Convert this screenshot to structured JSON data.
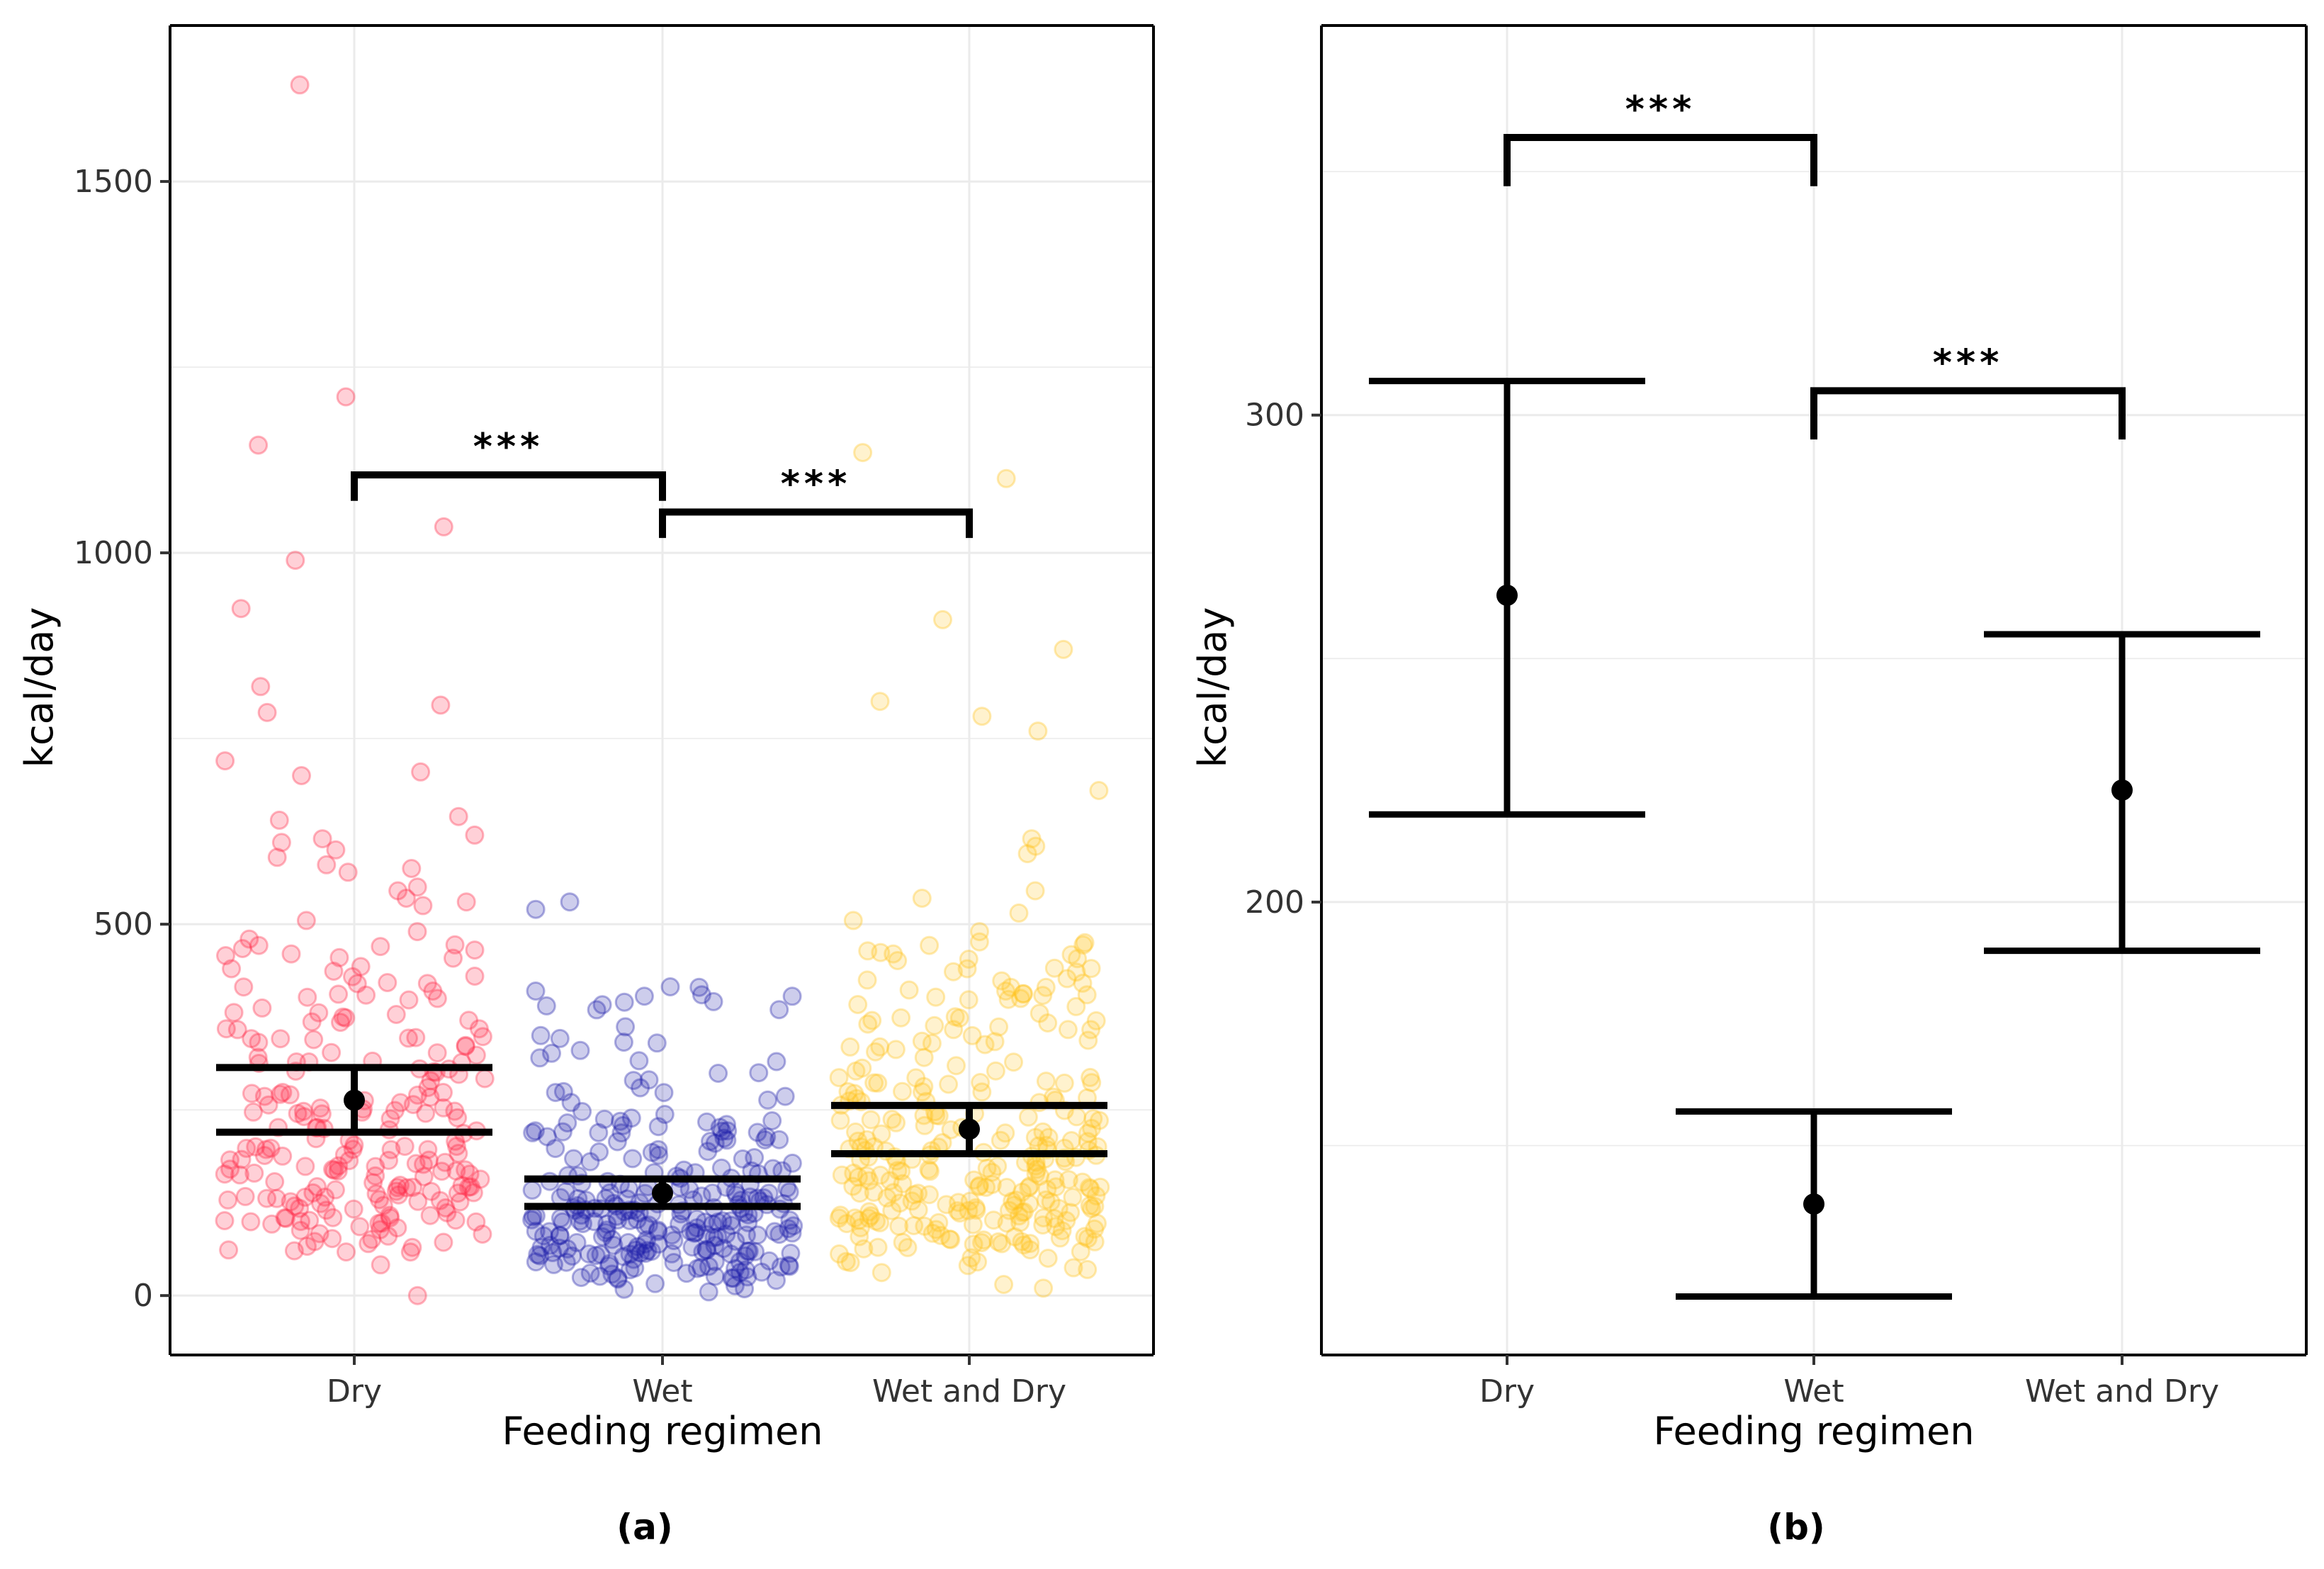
{
  "figure": {
    "panel_labels": [
      "(a)",
      "(b)"
    ]
  },
  "colors": {
    "Dry": "#ff2b48",
    "Wet": "#1c1ca8",
    "Wet and Dry": "#ffc21e",
    "grid": "#ebebeb",
    "ink": "#000000"
  },
  "chart_data": [
    {
      "type": "scatter",
      "panel": "(a)",
      "xlabel": "Feeding regimen",
      "ylabel": "kcal/day",
      "categories": [
        "Dry",
        "Wet",
        "Wet and Dry"
      ],
      "ylim": [
        -80,
        1710
      ],
      "yticks": [
        0,
        500,
        1000,
        1500
      ],
      "ytick_labels": [
        "0",
        "500",
        "1000",
        "1500"
      ],
      "grid": true,
      "jitter_points": {
        "Dry": {
          "n": 240,
          "notable": [
            1630,
            1210,
            1145,
            1035,
            990,
            925,
            820,
            795,
            785,
            720,
            705,
            700,
            645,
            640,
            620,
            615,
            610,
            600,
            590,
            580,
            575,
            570,
            550,
            545,
            535,
            530,
            525,
            505,
            490,
            480,
            470,
            460,
            455,
            440,
            430,
            420,
            410,
            400,
            375,
            0
          ]
        },
        "Wet": {
          "n": 280,
          "notable": [
            530,
            520,
            415,
            410,
            405,
            395,
            390,
            385,
            350,
            340,
            330,
            320,
            315,
            300,
            5
          ]
        },
        "Wet and Dry": {
          "n": 300,
          "notable": [
            1135,
            1100,
            910,
            870,
            800,
            780,
            760,
            680,
            615,
            605,
            595,
            545,
            535,
            515,
            505,
            490,
            475,
            460,
            440,
            415,
            410,
            405,
            400,
            380,
            370,
            10
          ]
        }
      },
      "series": [
        {
          "name": "Dry",
          "mean": 263,
          "ci": [
            220,
            307
          ]
        },
        {
          "name": "Wet",
          "mean": 138,
          "ci": [
            120,
            157
          ]
        },
        {
          "name": "Wet and Dry",
          "mean": 224,
          "ci": [
            191,
            256
          ]
        }
      ],
      "annotations": [
        {
          "from": "Dry",
          "to": "Wet",
          "y": 1105,
          "tick_bottom": 1070,
          "label": "***"
        },
        {
          "from": "Wet",
          "to": "Wet and Dry",
          "y": 1055,
          "tick_bottom": 1020,
          "label": "***"
        }
      ]
    },
    {
      "type": "scatter",
      "panel": "(b)",
      "xlabel": "Feeding regimen",
      "ylabel": "kcal/day",
      "categories": [
        "Dry",
        "Wet",
        "Wet and Dry"
      ],
      "ylim": [
        107,
        380
      ],
      "yticks": [
        200,
        300
      ],
      "ytick_labels": [
        "200",
        "300"
      ],
      "grid": true,
      "series": [
        {
          "name": "Dry",
          "mean": 263,
          "ci": [
            218,
            307
          ]
        },
        {
          "name": "Wet",
          "mean": 138,
          "ci": [
            119,
            157
          ]
        },
        {
          "name": "Wet and Dry",
          "mean": 223,
          "ci": [
            190,
            255
          ]
        }
      ],
      "annotations": [
        {
          "from": "Dry",
          "to": "Wet",
          "y": 357,
          "tick_bottom": 347,
          "label": "***"
        },
        {
          "from": "Wet",
          "to": "Wet and Dry",
          "y": 305,
          "tick_bottom": 295,
          "label": "***"
        }
      ]
    }
  ]
}
